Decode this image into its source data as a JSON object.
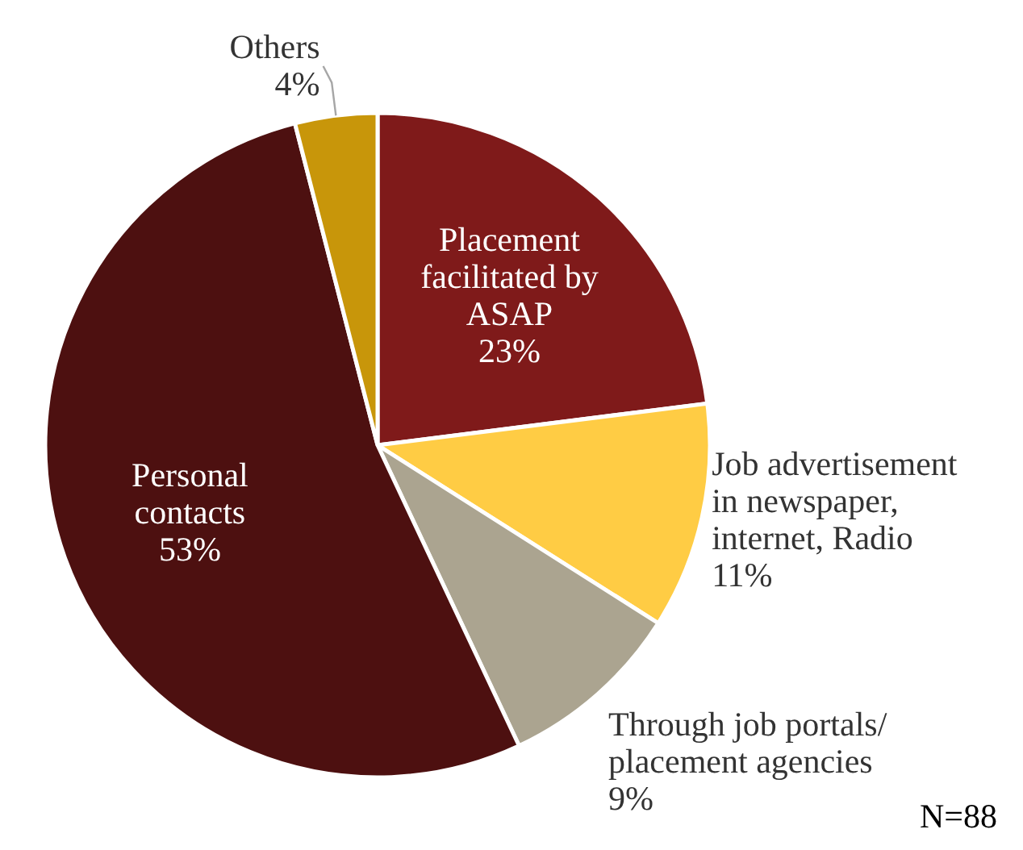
{
  "chart_data": {
    "type": "pie",
    "categories": [
      "Placement facilitated by ASAP",
      "Job advertisement in newspaper, internet, Radio",
      "Through job portals/ placement agencies",
      "Personal contacts",
      "Others"
    ],
    "values": [
      23,
      11,
      9,
      53,
      4
    ],
    "colors": [
      "#7f1a1a",
      "#ffcc44",
      "#aba490",
      "#4d1010",
      "#c8960a"
    ],
    "value_labels": [
      "23%",
      "11%",
      "9%",
      "53%",
      "4%"
    ],
    "legend": false,
    "annotations": [
      "N=88"
    ]
  }
}
